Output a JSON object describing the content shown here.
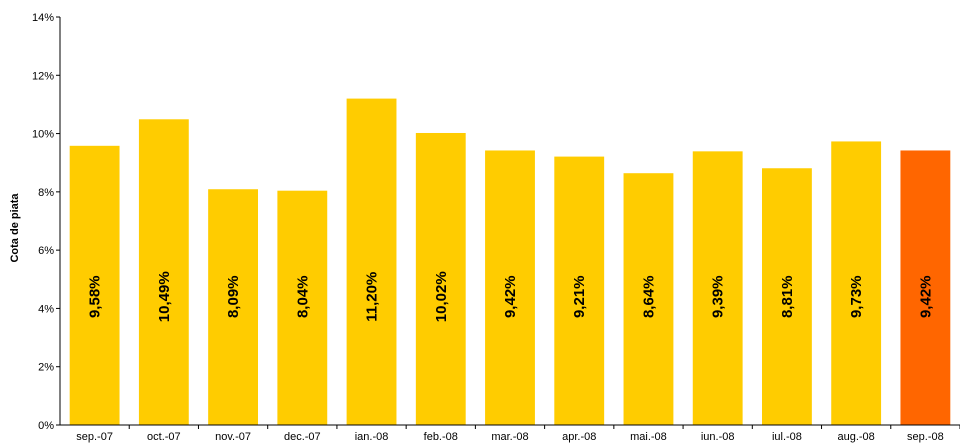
{
  "chart_data": {
    "type": "bar",
    "title": "",
    "xlabel": "",
    "ylabel": "Cota de piata",
    "ylim": [
      0,
      14
    ],
    "y_ticks": [
      "0%",
      "2%",
      "4%",
      "6%",
      "8%",
      "10%",
      "12%",
      "14%"
    ],
    "categories": [
      "sep.-07",
      "oct.-07",
      "nov.-07",
      "dec.-07",
      "ian.-08",
      "feb.-08",
      "mar.-08",
      "apr.-08",
      "mai.-08",
      "iun.-08",
      "iul.-08",
      "aug.-08",
      "sep.-08"
    ],
    "values": [
      9.58,
      10.49,
      8.09,
      8.04,
      11.2,
      10.02,
      9.42,
      9.21,
      8.64,
      9.39,
      8.81,
      9.73,
      9.42
    ],
    "data_labels": [
      "9,58%",
      "10,49%",
      "8,09%",
      "8,04%",
      "11,20%",
      "10,02%",
      "9,42%",
      "9,21%",
      "8,64%",
      "9,39%",
      "8,81%",
      "9,73%",
      "9,42%"
    ],
    "colors": {
      "bar": "#FFCC00",
      "highlight": "#FF6600"
    },
    "highlight_index": 12,
    "grid": false,
    "legend": "none"
  }
}
